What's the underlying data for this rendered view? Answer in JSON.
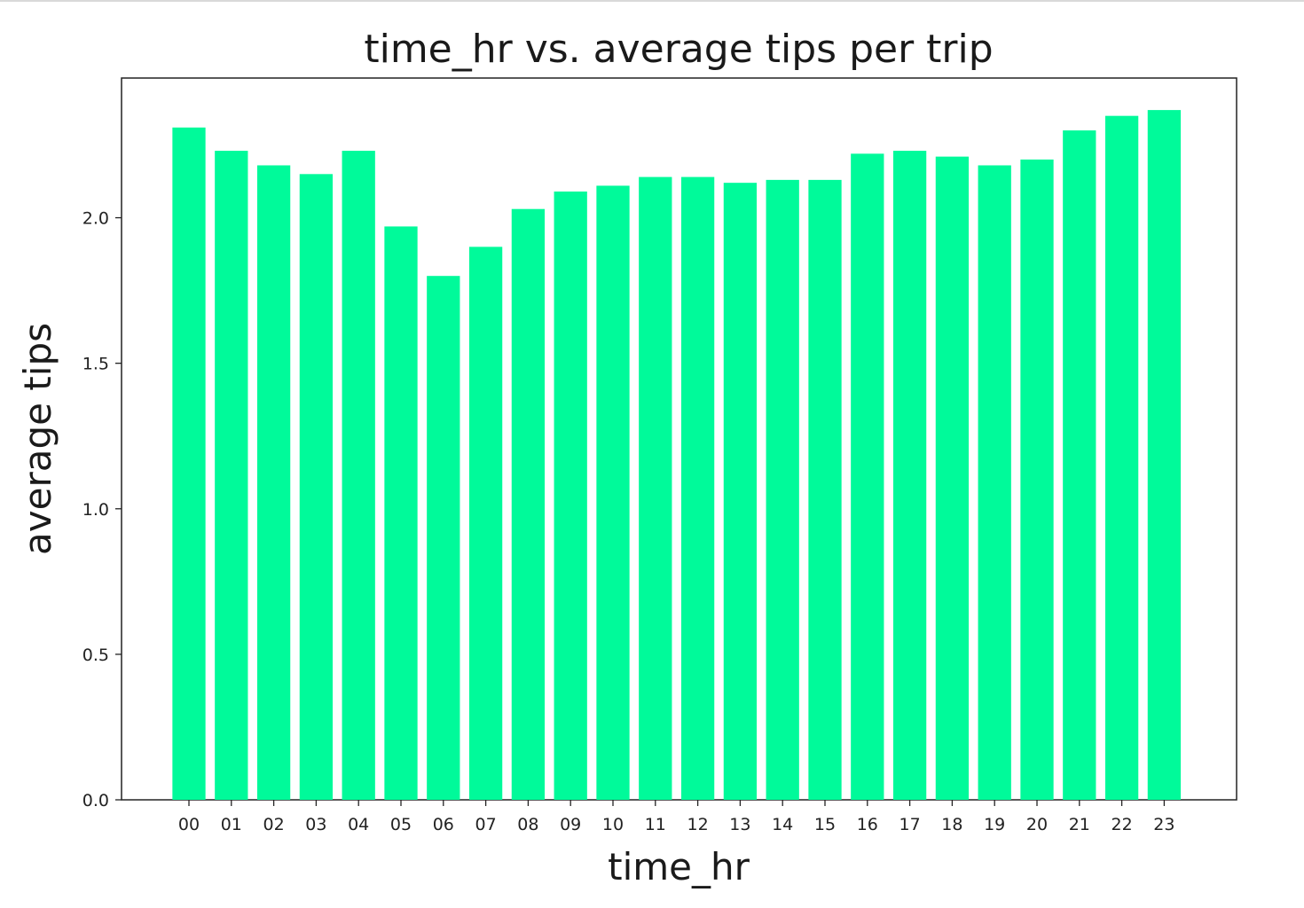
{
  "chart_data": {
    "type": "bar",
    "title": "time_hr vs. average tips per trip",
    "xlabel": "time_hr",
    "ylabel": "average tips",
    "categories": [
      "00",
      "01",
      "02",
      "03",
      "04",
      "05",
      "06",
      "07",
      "08",
      "09",
      "10",
      "11",
      "12",
      "13",
      "14",
      "15",
      "16",
      "17",
      "18",
      "19",
      "20",
      "21",
      "22",
      "23"
    ],
    "values": [
      2.31,
      2.23,
      2.18,
      2.15,
      2.23,
      1.97,
      1.8,
      1.9,
      2.03,
      2.09,
      2.11,
      2.14,
      2.14,
      2.12,
      2.13,
      2.13,
      2.22,
      2.23,
      2.21,
      2.18,
      2.2,
      2.3,
      2.35,
      2.37
    ],
    "ylim": [
      0,
      2.48
    ],
    "yticks": [
      "0.0",
      "0.5",
      "1.0",
      "1.5",
      "2.0"
    ],
    "grid": false,
    "legend": "none",
    "bar_color": "#00fa9a"
  }
}
